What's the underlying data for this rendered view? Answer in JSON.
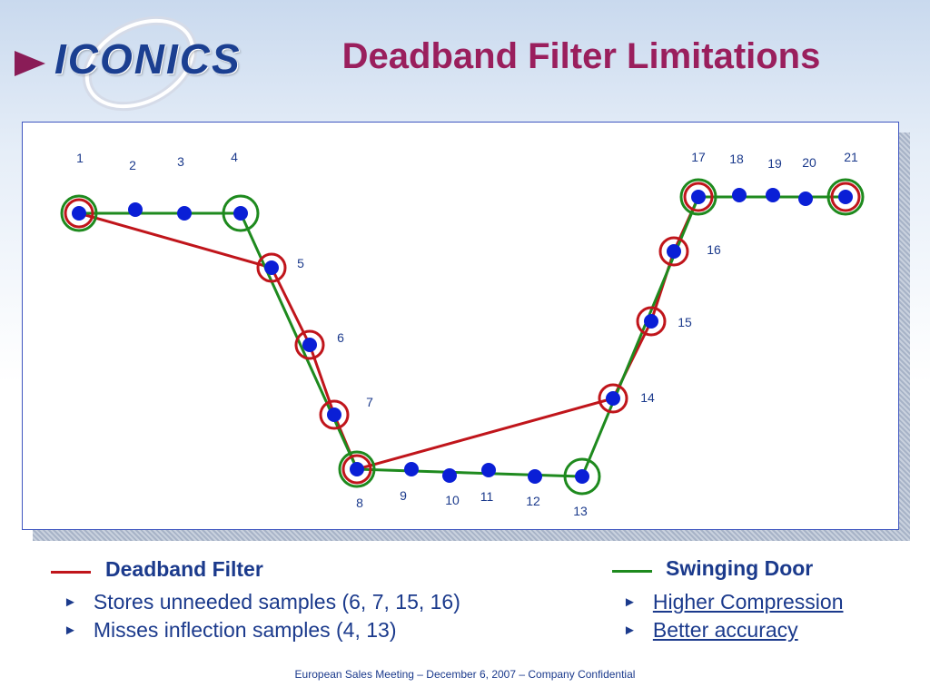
{
  "brand": {
    "logo_text": "ICONICS"
  },
  "title": "Deadband Filter Limitations",
  "diagram": {
    "points": [
      {
        "label": "1"
      },
      {
        "label": "2"
      },
      {
        "label": "3"
      },
      {
        "label": "4"
      },
      {
        "label": "5"
      },
      {
        "label": "6"
      },
      {
        "label": "7"
      },
      {
        "label": "8"
      },
      {
        "label": "9"
      },
      {
        "label": "10"
      },
      {
        "label": "11"
      },
      {
        "label": "12"
      },
      {
        "label": "13"
      },
      {
        "label": "14"
      },
      {
        "label": "15"
      },
      {
        "label": "16"
      },
      {
        "label": "17"
      },
      {
        "label": "18"
      },
      {
        "label": "19"
      },
      {
        "label": "20"
      },
      {
        "label": "21"
      }
    ],
    "deadband_path": [
      1,
      5,
      6,
      7,
      8,
      14,
      15,
      16,
      17,
      21
    ],
    "swinging_door_path": [
      1,
      4,
      8,
      13,
      17,
      21
    ],
    "colors": {
      "deadband": "#c0151b",
      "swinging_door": "#1e8a1e",
      "sample": "#0a1fd6",
      "label": "#1b3a8c"
    }
  },
  "legend": {
    "deadband": {
      "title": "Deadband Filter",
      "bullets": [
        "Stores unneeded samples (6, 7, 15, 16)",
        "Misses inflection samples (4, 13)"
      ]
    },
    "swinging_door": {
      "title": "Swinging Door",
      "bullets": [
        "Higher Compression",
        "Better accuracy"
      ]
    }
  },
  "footer": "European Sales Meeting – December 6, 2007 – Company Confidential"
}
